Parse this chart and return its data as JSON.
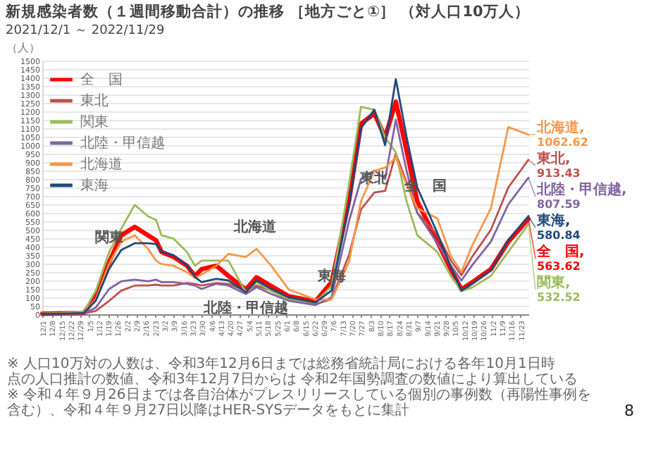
{
  "chart_data": {
    "type": "line",
    "title": "新規感染者数（１週間移動合計）の推移 ［地方ごと①］ （対人口10万人）",
    "subtitle": "2021/12/1 ～ 2022/11/29",
    "ylabel": "（人）",
    "x": [
      "2021-12-01",
      "2021-12-15",
      "2022-01-01",
      "2022-01-10",
      "2022-01-20",
      "2022-01-29",
      "2022-02-08",
      "2022-02-18",
      "2022-02-24",
      "2022-02-28",
      "2022-03-09",
      "2022-03-19",
      "2022-03-25",
      "2022-03-30",
      "2022-04-10",
      "2022-04-19",
      "2022-05-02",
      "2022-05-10",
      "2022-05-21",
      "2022-06-03",
      "2022-06-23",
      "2022-07-05",
      "2022-07-18",
      "2022-07-27",
      "2022-08-06",
      "2022-08-14",
      "2022-08-22",
      "2022-08-30",
      "2022-09-07",
      "2022-09-22",
      "2022-10-02",
      "2022-10-10",
      "2022-10-18",
      "2022-11-01",
      "2022-11-14",
      "2022-11-29"
    ],
    "xlim": [
      "2021-12-01",
      "2022-11-29"
    ],
    "xticks": [
      {
        "value": "2021-12-01",
        "label": "12/1"
      },
      {
        "value": "2021-12-08",
        "label": "12/8"
      },
      {
        "value": "2021-12-15",
        "label": "12/15"
      },
      {
        "value": "2021-12-22",
        "label": "12/22"
      },
      {
        "value": "2021-12-29",
        "label": "12/29"
      },
      {
        "value": "2022-01-05",
        "label": "1/5"
      },
      {
        "value": "2022-01-12",
        "label": "1/12"
      },
      {
        "value": "2022-01-19",
        "label": "1/19"
      },
      {
        "value": "2022-01-26",
        "label": "1/26"
      },
      {
        "value": "2022-02-02",
        "label": "2/2"
      },
      {
        "value": "2022-02-09",
        "label": "2/9"
      },
      {
        "value": "2022-02-16",
        "label": "2/16"
      },
      {
        "value": "2022-02-23",
        "label": "2/23"
      },
      {
        "value": "2022-03-02",
        "label": "3/2"
      },
      {
        "value": "2022-03-09",
        "label": "3/9"
      },
      {
        "value": "2022-03-16",
        "label": "3/16"
      },
      {
        "value": "2022-03-23",
        "label": "3/23"
      },
      {
        "value": "2022-03-30",
        "label": "3/30"
      },
      {
        "value": "2022-04-06",
        "label": "4/6"
      },
      {
        "value": "2022-04-13",
        "label": "4/13"
      },
      {
        "value": "2022-04-20",
        "label": "4/20"
      },
      {
        "value": "2022-04-27",
        "label": "4/27"
      },
      {
        "value": "2022-05-04",
        "label": "5/4"
      },
      {
        "value": "2022-05-11",
        "label": "5/11"
      },
      {
        "value": "2022-05-18",
        "label": "5/18"
      },
      {
        "value": "2022-05-25",
        "label": "5/25"
      },
      {
        "value": "2022-06-01",
        "label": "6/1"
      },
      {
        "value": "2022-06-08",
        "label": "6/8"
      },
      {
        "value": "2022-06-15",
        "label": "6/15"
      },
      {
        "value": "2022-06-22",
        "label": "6/22"
      },
      {
        "value": "2022-06-29",
        "label": "6/29"
      },
      {
        "value": "2022-07-06",
        "label": "7/6"
      },
      {
        "value": "2022-07-13",
        "label": "7/13"
      },
      {
        "value": "2022-07-20",
        "label": "7/20"
      },
      {
        "value": "2022-07-27",
        "label": "7/27"
      },
      {
        "value": "2022-08-03",
        "label": "8/3"
      },
      {
        "value": "2022-08-10",
        "label": "8/10"
      },
      {
        "value": "2022-08-17",
        "label": "8/17"
      },
      {
        "value": "2022-08-24",
        "label": "8/24"
      },
      {
        "value": "2022-08-31",
        "label": "8/31"
      },
      {
        "value": "2022-09-07",
        "label": "9/7"
      },
      {
        "value": "2022-09-14",
        "label": "9/14"
      },
      {
        "value": "2022-09-21",
        "label": "9/21"
      },
      {
        "value": "2022-09-28",
        "label": "9/28"
      },
      {
        "value": "2022-10-05",
        "label": "10/5"
      },
      {
        "value": "2022-10-12",
        "label": "10/12"
      },
      {
        "value": "2022-10-19",
        "label": "10/19"
      },
      {
        "value": "2022-10-26",
        "label": "10/26"
      },
      {
        "value": "2022-11-02",
        "label": "11/2"
      },
      {
        "value": "2022-11-09",
        "label": "11/9"
      },
      {
        "value": "2022-11-16",
        "label": "11/16"
      },
      {
        "value": "2022-11-23",
        "label": "11/23"
      }
    ],
    "ylim": [
      0,
      1500
    ],
    "yticks": [
      0,
      50,
      100,
      150,
      200,
      250,
      300,
      350,
      400,
      450,
      500,
      550,
      600,
      650,
      700,
      750,
      800,
      850,
      900,
      950,
      1000,
      1050,
      1100,
      1150,
      1200,
      1250,
      1300,
      1350,
      1400,
      1450,
      1500
    ],
    "grid": "y",
    "legend": "top left",
    "marker": "none",
    "line_style": "solid",
    "series": [
      {
        "name": "全　国",
        "color": "#ff0000",
        "values": [
          3,
          5,
          8,
          107,
          309,
          467,
          517,
          467,
          437,
          369,
          339,
          287,
          227,
          267,
          287,
          227,
          147,
          219,
          167,
          107,
          77,
          189,
          669,
          1127,
          1187,
          1047,
          1257,
          969,
          669,
          429,
          267,
          147,
          189,
          267,
          429,
          563.62
        ],
        "value_labels": [
          null,
          null,
          null,
          null,
          null,
          null,
          null,
          null,
          null,
          null,
          null,
          null,
          null,
          null,
          null,
          null,
          null,
          null,
          null,
          null,
          null,
          null,
          null,
          null,
          null,
          null,
          null,
          null,
          null,
          null,
          null,
          null,
          null,
          null,
          null,
          "全　国, 563.62"
        ]
      },
      {
        "name": "東北",
        "color": "#c0504d",
        "values": [
          2,
          3,
          5,
          20,
          80,
          140,
          170,
          170,
          175,
          170,
          170,
          185,
          180,
          170,
          185,
          180,
          140,
          170,
          140,
          95,
          60,
          90,
          350,
          620,
          720,
          730,
          950,
          780,
          600,
          470,
          320,
          230,
          340,
          500,
          750,
          913.43
        ],
        "value_labels": [
          null,
          null,
          null,
          null,
          null,
          null,
          null,
          null,
          null,
          null,
          null,
          null,
          null,
          null,
          null,
          null,
          null,
          null,
          null,
          null,
          null,
          null,
          null,
          null,
          null,
          null,
          null,
          null,
          null,
          null,
          null,
          null,
          null,
          null,
          null,
          "東北, 913.43"
        ]
      },
      {
        "name": "関東",
        "color": "#9bbb59",
        "values": [
          5,
          8,
          15,
          140,
          369,
          507,
          647,
          579,
          557,
          467,
          447,
          369,
          287,
          317,
          317,
          317,
          129,
          189,
          137,
          87,
          69,
          167,
          767,
          1227,
          1209,
          1047,
          957,
          669,
          467,
          369,
          227,
          137,
          159,
          227,
          369,
          532.52
        ],
        "value_labels": [
          null,
          null,
          null,
          null,
          null,
          null,
          null,
          null,
          null,
          null,
          null,
          null,
          null,
          null,
          null,
          null,
          null,
          null,
          null,
          null,
          null,
          null,
          null,
          null,
          null,
          null,
          null,
          null,
          null,
          null,
          null,
          null,
          null,
          null,
          null,
          "関東, 532.52"
        ]
      },
      {
        "name": "北陸・甲信越",
        "color": "#8064a2",
        "values": [
          2,
          3,
          5,
          40,
          150,
          195,
          205,
          195,
          205,
          190,
          190,
          180,
          170,
          150,
          180,
          170,
          120,
          160,
          120,
          80,
          55,
          100,
          550,
          800,
          850,
          800,
          1150,
          850,
          600,
          420,
          290,
          200,
          290,
          430,
          650,
          807.59
        ],
        "value_labels": [
          null,
          null,
          null,
          null,
          null,
          null,
          null,
          null,
          null,
          null,
          null,
          null,
          null,
          null,
          null,
          null,
          null,
          null,
          null,
          null,
          null,
          null,
          null,
          null,
          null,
          null,
          null,
          null,
          null,
          null,
          null,
          null,
          null,
          null,
          null,
          "北陸・甲信越, 807.59"
        ]
      },
      {
        "name": "北海道",
        "color": "#f79646",
        "values": [
          3,
          5,
          10,
          90,
          300,
          430,
          467,
          387,
          317,
          297,
          287,
          249,
          215,
          235,
          287,
          357,
          339,
          387,
          287,
          147,
          87,
          87,
          309,
          669,
          849,
          867,
          927,
          767,
          627,
          567,
          347,
          249,
          407,
          627,
          1107,
          1062.62
        ],
        "value_labels": [
          null,
          null,
          null,
          null,
          null,
          null,
          null,
          null,
          null,
          null,
          null,
          null,
          null,
          null,
          null,
          null,
          null,
          null,
          null,
          null,
          null,
          null,
          null,
          null,
          null,
          null,
          null,
          null,
          null,
          null,
          null,
          null,
          null,
          null,
          null,
          "北海道, 1062.62"
        ]
      },
      {
        "name": "東海",
        "color": "#1f497d",
        "values": [
          2,
          4,
          8,
          80,
          270,
          380,
          420,
          420,
          415,
          370,
          350,
          290,
          220,
          190,
          210,
          200,
          130,
          200,
          150,
          100,
          70,
          140,
          640,
          1100,
          1210,
          1000,
          1390,
          1050,
          750,
          480,
          280,
          140,
          180,
          260,
          440,
          580.84
        ],
        "value_labels": [
          null,
          null,
          null,
          null,
          null,
          null,
          null,
          null,
          null,
          null,
          null,
          null,
          null,
          null,
          null,
          null,
          null,
          null,
          null,
          null,
          null,
          null,
          null,
          null,
          null,
          null,
          null,
          null,
          null,
          null,
          null,
          null,
          null,
          null,
          null,
          "東海, 580.84"
        ]
      }
    ],
    "annotations": [
      {
        "text": "全　国",
        "x": "2022-09-13",
        "y": 675
      },
      {
        "text": "東北",
        "x": "2022-08-06",
        "y": 720
      },
      {
        "text": "関東",
        "x": "2022-01-20",
        "y": 369
      },
      {
        "text": "北海道",
        "x": "2022-05-09",
        "y": 435
      },
      {
        "text": "北陸・甲信越",
        "x": "2022-05-02",
        "y": 120
      },
      {
        "text": "東海",
        "x": "2022-07-05",
        "y": 140
      },
      "※ 人口10万対の人数は、令和3年12月6日までは総務省統計局における各年10月1日時点の人口推計の数値、令和3年12月7日からは 令和2年国勢調査の数値により算出している",
      "※ 令和４年９月26日までは各自治体がプレスリリースしている個別の事例数（再陽性事例を含む）、令和４年９月27日以降はHER-SYSデータをもとに集計",
      "8"
    ]
  }
}
